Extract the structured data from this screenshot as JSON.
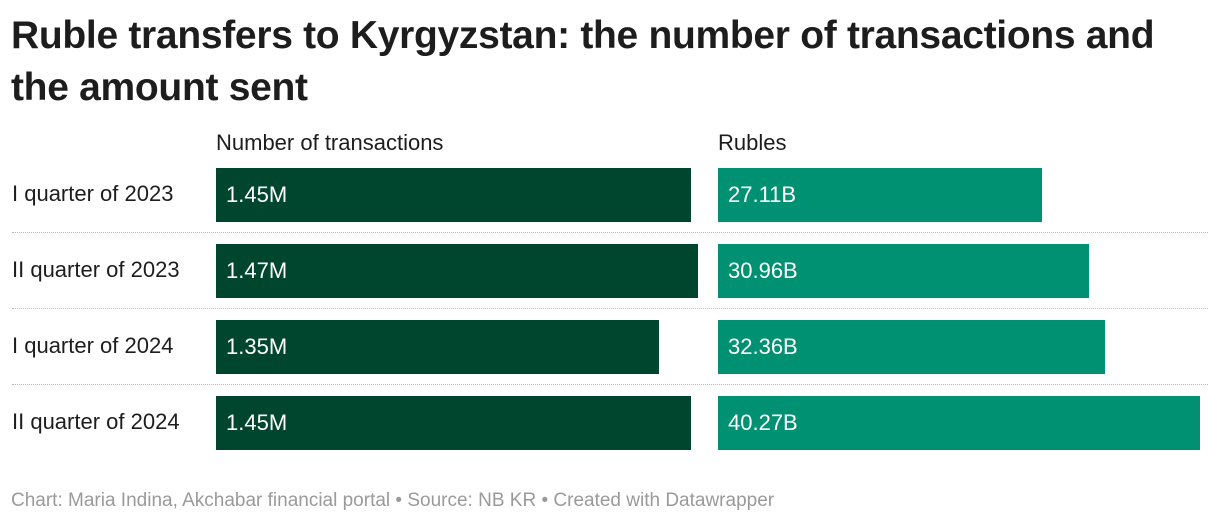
{
  "chart_data": {
    "type": "bar",
    "title": "Ruble transfers to Kyrgyzstan: the number of transactions and the amount sent",
    "categories": [
      "I quarter of 2023",
      "II quarter of 2023",
      "I quarter of 2024",
      "II quarter of 2024"
    ],
    "series": [
      {
        "name": "Number of transactions",
        "values": [
          1.45,
          1.47,
          1.35,
          1.45
        ],
        "labels": [
          "1.45M",
          "1.47M",
          "1.35M",
          "1.45M"
        ],
        "color": "#00462f",
        "max": 1.47
      },
      {
        "name": "Rubles",
        "values": [
          27.11,
          30.96,
          32.36,
          40.27
        ],
        "labels": [
          "27.11B",
          "30.96B",
          "32.36B",
          "40.27B"
        ],
        "color": "#009172",
        "max": 40.27
      }
    ],
    "grid": false,
    "legend": "column headers"
  },
  "footer": {
    "text": "Chart: Maria Indina, Akchabar financial portal • Source: NB KR • Created with Datawrapper"
  }
}
